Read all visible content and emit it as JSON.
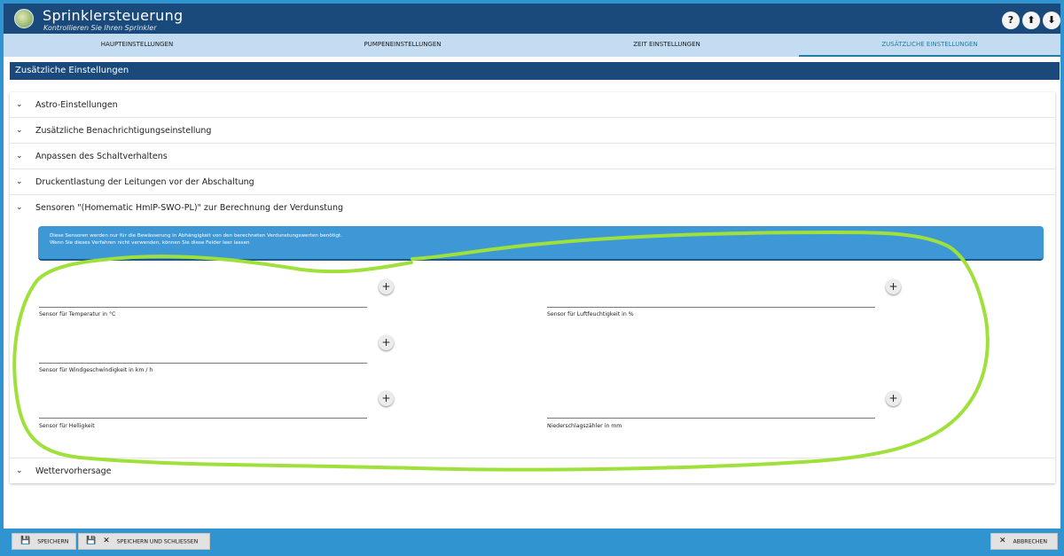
{
  "app": {
    "title": "Sprinklersteuerung",
    "subtitle": "Kontrollieren Sie Ihren Sprinkler"
  },
  "header_buttons": {
    "help": "?",
    "upload": "⬆",
    "download": "⬇"
  },
  "tabs": [
    {
      "label": "HAUPTEINSTELLUNGEN"
    },
    {
      "label": "PUMPENEINSTELLUNGEN"
    },
    {
      "label": "ZEIT EINSTELLUNGEN"
    },
    {
      "label": "ZUSÄTZLICHE EINSTELLUNGEN",
      "active": true
    }
  ],
  "section": {
    "title": "Zusätzliche Einstellungen"
  },
  "accordion": [
    {
      "label": "Astro-Einstellungen"
    },
    {
      "label": "Zusätzliche Benachrichtigungseinstellung"
    },
    {
      "label": "Anpassen des Schaltverhaltens"
    },
    {
      "label": "Druckentlastung der Leitungen vor der Abschaltung"
    },
    {
      "label": "Sensoren \"(Homematic HmIP-SWO-PL)\" zur Berechnung der Verdunstung",
      "expanded": true
    },
    {
      "label": "Wettervorhersage"
    }
  ],
  "info": {
    "line1": "Diese Sensoren werden nur für die Bewässerung in Abhängigkeit von den berechneten Verdunstungswerten benötigt.",
    "line2": "Wenn Sie dieses Verfahren nicht verwenden, können Sie diese Felder leer lassen"
  },
  "fields": {
    "temperature": {
      "label": "Sensor für Temperatur in °C",
      "value": ""
    },
    "humidity": {
      "label": "Sensor für Luftfeuchtigkeit in %",
      "value": ""
    },
    "wind": {
      "label": "Sensor für Windgeschwindigkeit in km / h",
      "value": ""
    },
    "brightness": {
      "label": "Sensor für Helligkeit",
      "value": ""
    },
    "rain": {
      "label": "Niederschlagszähler in mm",
      "value": ""
    }
  },
  "icons": {
    "add": "+",
    "chevron": "❯",
    "close": "✕"
  },
  "footer": {
    "save": "SPEICHERN",
    "save_close": "SPEICHERN UND SCHLIESSEN",
    "cancel": "ABBRECHEN"
  },
  "colors": {
    "header": "#1a4a7c",
    "tab_bar": "#c4dcf1",
    "accent": "#1f7ea1",
    "info_box": "#3e98d6",
    "footer": "#2f94cf",
    "annotation": "#9fe03a"
  }
}
